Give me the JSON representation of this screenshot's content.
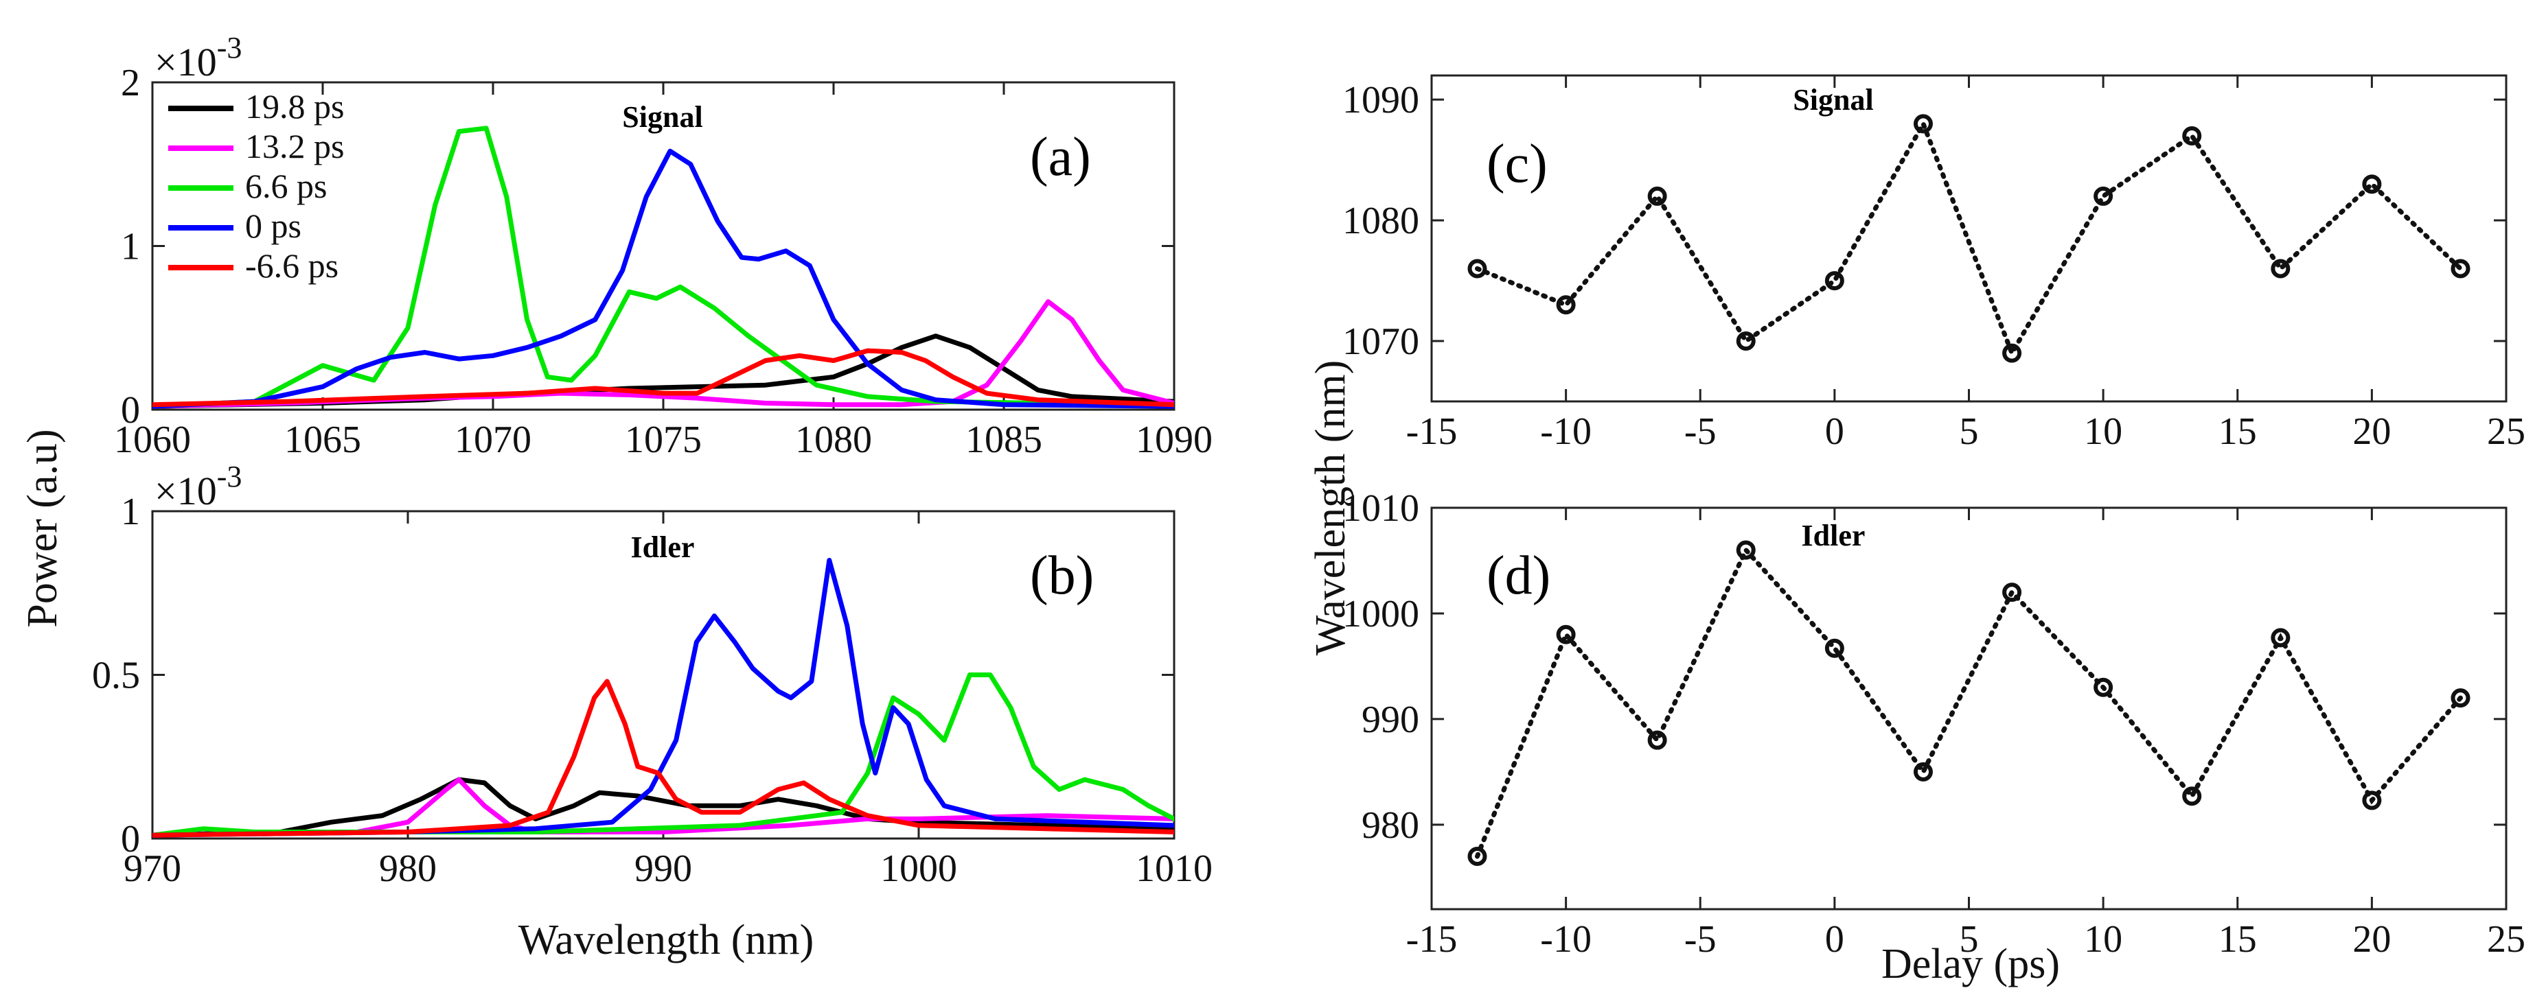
{
  "figure": {
    "ylabel_left": "Power (a.u)",
    "xlabel_left": "Wavelength (nm)",
    "ylabel_right": "Wavelength (nm)",
    "xlabel_right": "Delay (ps)"
  },
  "chart_data": [
    {
      "id": "a",
      "type": "line",
      "panel_label": "(a)",
      "title": "Signal",
      "exponent_label": "×10",
      "exponent_power": "-3",
      "xlim": [
        1060,
        1090
      ],
      "ylim": [
        0,
        2
      ],
      "xticks": [
        1060,
        1065,
        1070,
        1075,
        1080,
        1085,
        1090
      ],
      "yticks": [
        0,
        1,
        2
      ],
      "legend_position": "top-left",
      "series": [
        {
          "name": "19.8 ps",
          "color": "#000000",
          "points": [
            [
              1060,
              0.02
            ],
            [
              1065,
              0.04
            ],
            [
              1068,
              0.06
            ],
            [
              1070,
              0.09
            ],
            [
              1072,
              0.11
            ],
            [
              1074,
              0.13
            ],
            [
              1076,
              0.14
            ],
            [
              1078,
              0.15
            ],
            [
              1080,
              0.2
            ],
            [
              1081,
              0.28
            ],
            [
              1082,
              0.38
            ],
            [
              1083,
              0.45
            ],
            [
              1084,
              0.38
            ],
            [
              1085,
              0.25
            ],
            [
              1086,
              0.12
            ],
            [
              1087,
              0.08
            ],
            [
              1088,
              0.07
            ],
            [
              1090,
              0.05
            ]
          ]
        },
        {
          "name": "13.2 ps",
          "color": "#ff00ff",
          "points": [
            [
              1060,
              0.02
            ],
            [
              1064,
              0.04
            ],
            [
              1068,
              0.07
            ],
            [
              1070,
              0.08
            ],
            [
              1072,
              0.1
            ],
            [
              1074,
              0.09
            ],
            [
              1076,
              0.07
            ],
            [
              1078,
              0.04
            ],
            [
              1080,
              0.03
            ],
            [
              1082,
              0.03
            ],
            [
              1083.5,
              0.05
            ],
            [
              1084.5,
              0.15
            ],
            [
              1085.5,
              0.42
            ],
            [
              1086.3,
              0.66
            ],
            [
              1087,
              0.55
            ],
            [
              1087.8,
              0.3
            ],
            [
              1088.5,
              0.12
            ],
            [
              1090,
              0.04
            ]
          ]
        },
        {
          "name": "6.6 ps",
          "color": "#00e600",
          "points": [
            [
              1060,
              0.02
            ],
            [
              1063,
              0.05
            ],
            [
              1065,
              0.27
            ],
            [
              1066.5,
              0.18
            ],
            [
              1067.5,
              0.5
            ],
            [
              1068.3,
              1.25
            ],
            [
              1069,
              1.7
            ],
            [
              1069.8,
              1.72
            ],
            [
              1070.4,
              1.3
            ],
            [
              1071,
              0.55
            ],
            [
              1071.6,
              0.2
            ],
            [
              1072.3,
              0.18
            ],
            [
              1073,
              0.33
            ],
            [
              1074,
              0.72
            ],
            [
              1074.8,
              0.68
            ],
            [
              1075.5,
              0.75
            ],
            [
              1076.5,
              0.62
            ],
            [
              1077.5,
              0.45
            ],
            [
              1078.5,
              0.3
            ],
            [
              1079.5,
              0.15
            ],
            [
              1081,
              0.08
            ],
            [
              1083,
              0.05
            ],
            [
              1086,
              0.04
            ],
            [
              1090,
              0.03
            ]
          ]
        },
        {
          "name": "0 ps",
          "color": "#0000ff",
          "points": [
            [
              1060,
              0.02
            ],
            [
              1063,
              0.05
            ],
            [
              1065,
              0.14
            ],
            [
              1066,
              0.25
            ],
            [
              1067,
              0.32
            ],
            [
              1068,
              0.35
            ],
            [
              1069,
              0.31
            ],
            [
              1070,
              0.33
            ],
            [
              1071,
              0.38
            ],
            [
              1072,
              0.45
            ],
            [
              1073,
              0.55
            ],
            [
              1073.8,
              0.85
            ],
            [
              1074.5,
              1.3
            ],
            [
              1075.2,
              1.58
            ],
            [
              1075.8,
              1.5
            ],
            [
              1076.6,
              1.15
            ],
            [
              1077.3,
              0.93
            ],
            [
              1077.8,
              0.92
            ],
            [
              1078.6,
              0.97
            ],
            [
              1079.3,
              0.88
            ],
            [
              1080,
              0.55
            ],
            [
              1081,
              0.28
            ],
            [
              1082,
              0.12
            ],
            [
              1083,
              0.06
            ],
            [
              1085,
              0.03
            ],
            [
              1090,
              0.02
            ]
          ]
        },
        {
          "name": "-6.6 ps",
          "color": "#ff0000",
          "points": [
            [
              1060,
              0.03
            ],
            [
              1064,
              0.05
            ],
            [
              1068,
              0.08
            ],
            [
              1071,
              0.1
            ],
            [
              1073,
              0.13
            ],
            [
              1075,
              0.1
            ],
            [
              1076,
              0.1
            ],
            [
              1077,
              0.2
            ],
            [
              1078,
              0.3
            ],
            [
              1079,
              0.33
            ],
            [
              1080,
              0.3
            ],
            [
              1081,
              0.36
            ],
            [
              1082,
              0.35
            ],
            [
              1082.7,
              0.3
            ],
            [
              1083.5,
              0.2
            ],
            [
              1084.5,
              0.1
            ],
            [
              1086,
              0.06
            ],
            [
              1090,
              0.03
            ]
          ]
        }
      ]
    },
    {
      "id": "b",
      "type": "line",
      "panel_label": "(b)",
      "title": "Idler",
      "exponent_label": "×10",
      "exponent_power": "-3",
      "xlim": [
        970,
        1010
      ],
      "ylim": [
        0,
        1
      ],
      "xticks": [
        970,
        980,
        990,
        1000,
        1010
      ],
      "yticks": [
        0,
        0.5,
        1
      ],
      "series": [
        {
          "name": "19.8 ps",
          "color": "#000000",
          "points": [
            [
              970,
              0.01
            ],
            [
              975,
              0.02
            ],
            [
              977,
              0.05
            ],
            [
              979,
              0.07
            ],
            [
              980.5,
              0.12
            ],
            [
              982,
              0.18
            ],
            [
              983,
              0.17
            ],
            [
              984,
              0.1
            ],
            [
              985,
              0.06
            ],
            [
              986.5,
              0.1
            ],
            [
              987.5,
              0.14
            ],
            [
              989,
              0.13
            ],
            [
              991,
              0.1
            ],
            [
              993,
              0.1
            ],
            [
              994.5,
              0.12
            ],
            [
              996,
              0.1
            ],
            [
              998,
              0.06
            ],
            [
              1000,
              0.05
            ],
            [
              1005,
              0.04
            ],
            [
              1010,
              0.03
            ]
          ]
        },
        {
          "name": "13.2 ps",
          "color": "#ff00ff",
          "points": [
            [
              970,
              0.01
            ],
            [
              978,
              0.02
            ],
            [
              980,
              0.05
            ],
            [
              981.5,
              0.15
            ],
            [
              982,
              0.18
            ],
            [
              983,
              0.1
            ],
            [
              984,
              0.04
            ],
            [
              985,
              0.02
            ],
            [
              990,
              0.02
            ],
            [
              995,
              0.04
            ],
            [
              998,
              0.06
            ],
            [
              1000,
              0.06
            ],
            [
              1005,
              0.07
            ],
            [
              1010,
              0.06
            ]
          ]
        },
        {
          "name": "6.6 ps",
          "color": "#00e600",
          "points": [
            [
              970,
              0.01
            ],
            [
              972,
              0.03
            ],
            [
              974,
              0.02
            ],
            [
              978,
              0.02
            ],
            [
              985,
              0.02
            ],
            [
              993,
              0.04
            ],
            [
              997,
              0.08
            ],
            [
              998,
              0.2
            ],
            [
              999,
              0.43
            ],
            [
              1000,
              0.38
            ],
            [
              1001,
              0.3
            ],
            [
              1002,
              0.5
            ],
            [
              1002.8,
              0.5
            ],
            [
              1003.6,
              0.4
            ],
            [
              1004.5,
              0.22
            ],
            [
              1005.5,
              0.15
            ],
            [
              1006.5,
              0.18
            ],
            [
              1008,
              0.15
            ],
            [
              1009,
              0.1
            ],
            [
              1010,
              0.06
            ]
          ]
        },
        {
          "name": "0 ps",
          "color": "#0000ff",
          "points": [
            [
              970,
              0.01
            ],
            [
              980,
              0.02
            ],
            [
              985,
              0.03
            ],
            [
              988,
              0.05
            ],
            [
              989.5,
              0.15
            ],
            [
              990.5,
              0.3
            ],
            [
              991.3,
              0.6
            ],
            [
              992,
              0.68
            ],
            [
              992.8,
              0.6
            ],
            [
              993.5,
              0.52
            ],
            [
              994.5,
              0.45
            ],
            [
              995,
              0.43
            ],
            [
              995.8,
              0.48
            ],
            [
              996.5,
              0.85
            ],
            [
              997.2,
              0.65
            ],
            [
              997.8,
              0.35
            ],
            [
              998.3,
              0.2
            ],
            [
              999,
              0.4
            ],
            [
              999.6,
              0.35
            ],
            [
              1000.3,
              0.18
            ],
            [
              1001,
              0.1
            ],
            [
              1003,
              0.06
            ],
            [
              1010,
              0.04
            ]
          ]
        },
        {
          "name": "-6.6 ps",
          "color": "#ff0000",
          "points": [
            [
              970,
              0.01
            ],
            [
              980,
              0.02
            ],
            [
              984,
              0.04
            ],
            [
              985.5,
              0.08
            ],
            [
              986.5,
              0.25
            ],
            [
              987.3,
              0.43
            ],
            [
              987.8,
              0.48
            ],
            [
              988.5,
              0.35
            ],
            [
              989,
              0.22
            ],
            [
              989.8,
              0.2
            ],
            [
              990.5,
              0.12
            ],
            [
              991.5,
              0.08
            ],
            [
              993,
              0.08
            ],
            [
              994.5,
              0.15
            ],
            [
              995.5,
              0.17
            ],
            [
              996.5,
              0.12
            ],
            [
              998,
              0.07
            ],
            [
              1000,
              0.04
            ],
            [
              1005,
              0.03
            ],
            [
              1010,
              0.02
            ]
          ]
        }
      ]
    },
    {
      "id": "c",
      "type": "scatter",
      "panel_label": "(c)",
      "title": "Signal",
      "xlim": [
        -15,
        25
      ],
      "ylim": [
        1065,
        1092
      ],
      "xticks": [
        -15,
        -10,
        -5,
        0,
        5,
        10,
        15,
        20,
        25
      ],
      "yticks": [
        1070,
        1080,
        1090
      ],
      "x": [
        -13.3,
        -10,
        -6.6,
        -3.3,
        0,
        3.3,
        6.6,
        10,
        13.3,
        16.6,
        20,
        23.3
      ],
      "y": [
        1076,
        1073,
        1082,
        1070,
        1075,
        1088,
        1069,
        1082,
        1087,
        1076,
        1083,
        1076
      ]
    },
    {
      "id": "d",
      "type": "scatter",
      "panel_label": "(d)",
      "title": "Idler",
      "xlim": [
        -15,
        25
      ],
      "ylim": [
        972,
        1010
      ],
      "xticks": [
        -15,
        -10,
        -5,
        0,
        5,
        10,
        15,
        20,
        25
      ],
      "yticks": [
        980,
        990,
        1000,
        1010
      ],
      "x": [
        -13.3,
        -10,
        -6.6,
        -3.3,
        0,
        3.3,
        6.6,
        10,
        13.3,
        16.6,
        20,
        23.3
      ],
      "y": [
        977,
        998,
        988,
        1006,
        996.7,
        985,
        1002,
        993,
        982.7,
        997.7,
        982.3,
        992
      ]
    }
  ]
}
